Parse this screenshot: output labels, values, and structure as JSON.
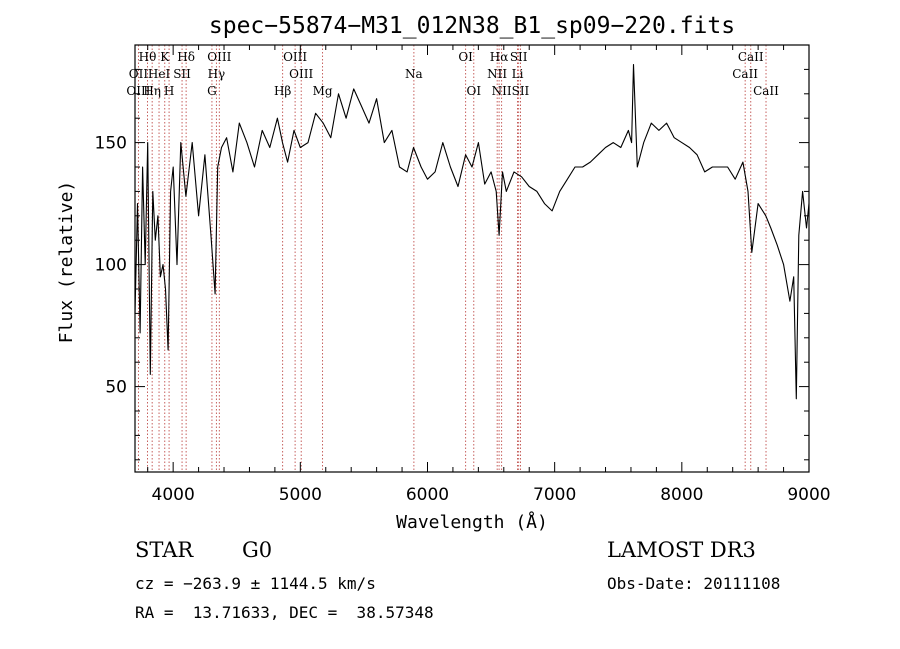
{
  "chart_data": {
    "type": "line",
    "title": "spec−55874−M31_012N38_B1_sp09−220.fits",
    "xlabel": "Wavelength (Å)",
    "ylabel": "Flux (relative)",
    "xlim": [
      3700,
      9000
    ],
    "ylim": [
      15,
      190
    ],
    "x_ticks": [
      4000,
      5000,
      6000,
      7000,
      8000,
      9000
    ],
    "y_ticks": [
      50,
      100,
      150
    ],
    "series": [
      {
        "name": "spectrum",
        "x": [
          3700,
          3720,
          3740,
          3760,
          3780,
          3800,
          3820,
          3840,
          3860,
          3880,
          3900,
          3920,
          3940,
          3960,
          3980,
          4000,
          4030,
          4060,
          4100,
          4150,
          4200,
          4250,
          4300,
          4330,
          4350,
          4380,
          4420,
          4470,
          4520,
          4580,
          4640,
          4700,
          4760,
          4820,
          4860,
          4900,
          4950,
          5000,
          5060,
          5120,
          5180,
          5240,
          5300,
          5360,
          5420,
          5480,
          5540,
          5600,
          5660,
          5720,
          5780,
          5840,
          5890,
          5950,
          6000,
          6060,
          6120,
          6180,
          6240,
          6300,
          6350,
          6400,
          6450,
          6500,
          6540,
          6563,
          6590,
          6620,
          6680,
          6740,
          6800,
          6860,
          6920,
          6980,
          7040,
          7100,
          7160,
          7220,
          7280,
          7340,
          7400,
          7460,
          7520,
          7580,
          7605,
          7620,
          7650,
          7700,
          7760,
          7820,
          7880,
          7940,
          8000,
          8060,
          8120,
          8180,
          8240,
          8300,
          8360,
          8420,
          8480,
          8520,
          8550,
          8600,
          8660,
          8700,
          8750,
          8800,
          8850,
          8880,
          8900,
          8920,
          8950,
          8980,
          9000
        ],
        "values": [
          80,
          125,
          72,
          140,
          100,
          150,
          55,
          130,
          110,
          120,
          95,
          100,
          90,
          65,
          130,
          140,
          100,
          150,
          128,
          150,
          120,
          145,
          110,
          88,
          140,
          148,
          152,
          138,
          158,
          150,
          140,
          155,
          148,
          160,
          150,
          142,
          155,
          148,
          150,
          162,
          158,
          152,
          170,
          160,
          172,
          165,
          158,
          168,
          150,
          155,
          140,
          138,
          148,
          140,
          135,
          138,
          150,
          140,
          132,
          145,
          140,
          150,
          133,
          138,
          130,
          112,
          138,
          130,
          138,
          136,
          132,
          130,
          125,
          122,
          130,
          135,
          140,
          140,
          142,
          145,
          148,
          150,
          148,
          155,
          150,
          182,
          140,
          150,
          158,
          155,
          158,
          152,
          150,
          148,
          145,
          138,
          140,
          140,
          140,
          135,
          142,
          130,
          105,
          125,
          120,
          115,
          108,
          100,
          85,
          95,
          45,
          112,
          130,
          115,
          125
        ]
      }
    ],
    "spectral_lines": [
      {
        "label": "Hθ",
        "wavelength": 3798,
        "row": 1
      },
      {
        "label": "K",
        "wavelength": 3934,
        "row": 1
      },
      {
        "label": "Hδ",
        "wavelength": 4102,
        "row": 1
      },
      {
        "label": "OIII",
        "wavelength": 4363,
        "row": 1
      },
      {
        "label": "OIII",
        "wavelength": 4959,
        "row": 1
      },
      {
        "label": "OI",
        "wavelength": 6300,
        "row": 1
      },
      {
        "label": "Hα",
        "wavelength": 6563,
        "row": 1
      },
      {
        "label": "SII",
        "wavelength": 6717,
        "row": 1
      },
      {
        "label": "CaII",
        "wavelength": 8542,
        "row": 1
      },
      {
        "label": "OII",
        "wavelength": 3727,
        "row": 2
      },
      {
        "label": "HeI",
        "wavelength": 3889,
        "row": 2
      },
      {
        "label": "SII",
        "wavelength": 4070,
        "row": 2
      },
      {
        "label": "Hγ",
        "wavelength": 4340,
        "row": 2
      },
      {
        "label": "OIII",
        "wavelength": 5007,
        "row": 2
      },
      {
        "label": "Na",
        "wavelength": 5893,
        "row": 2
      },
      {
        "label": "NII",
        "wavelength": 6548,
        "row": 2
      },
      {
        "label": "Li",
        "wavelength": 6708,
        "row": 2
      },
      {
        "label": "CaII",
        "wavelength": 8498,
        "row": 2
      },
      {
        "label": "OIII",
        "wavelength": 3727,
        "row": 3
      },
      {
        "label": "Hη",
        "wavelength": 3835,
        "row": 3
      },
      {
        "label": "H",
        "wavelength": 3968,
        "row": 3
      },
      {
        "label": "G",
        "wavelength": 4305,
        "row": 3
      },
      {
        "label": "Hβ",
        "wavelength": 4861,
        "row": 3
      },
      {
        "label": "Mg",
        "wavelength": 5175,
        "row": 3
      },
      {
        "label": "OI",
        "wavelength": 6364,
        "row": 3
      },
      {
        "label": "NII",
        "wavelength": 6583,
        "row": 3
      },
      {
        "label": "SII",
        "wavelength": 6731,
        "row": 3
      },
      {
        "label": "CaII",
        "wavelength": 8662,
        "row": 3
      }
    ]
  },
  "info": {
    "class": "STAR",
    "subclass": "G0",
    "survey": "LAMOST DR3",
    "cz": "cz = −263.9 ± 1144.5 km/s",
    "obs_date": "Obs-Date: 20111108",
    "coords": "RA =  13.71633, DEC =  38.57348"
  }
}
